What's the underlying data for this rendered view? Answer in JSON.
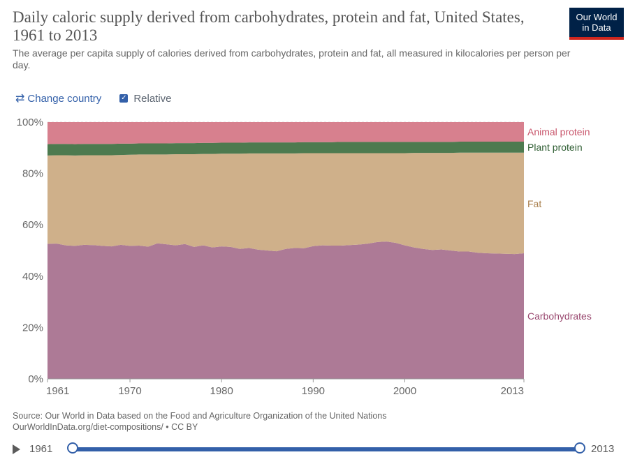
{
  "header": {
    "title": "Daily caloric supply derived from carbohydrates, protein and fat, United States, 1961 to 2013",
    "subtitle": "The average per capita supply of calories derived from carbohydrates, protein and fat, all measured in kilocalories per person per day.",
    "logo_line1": "Our World",
    "logo_line2": "in Data"
  },
  "controls": {
    "change_country_label": "Change country",
    "relative_label": "Relative",
    "relative_checked": true
  },
  "chart_data": {
    "type": "area",
    "stacked": true,
    "relative": true,
    "x": [
      1961,
      1962,
      1963,
      1964,
      1965,
      1966,
      1967,
      1968,
      1969,
      1970,
      1971,
      1972,
      1973,
      1974,
      1975,
      1976,
      1977,
      1978,
      1979,
      1980,
      1981,
      1982,
      1983,
      1984,
      1985,
      1986,
      1987,
      1988,
      1989,
      1990,
      1991,
      1992,
      1993,
      1994,
      1995,
      1996,
      1997,
      1998,
      1999,
      2000,
      2001,
      2002,
      2003,
      2004,
      2005,
      2006,
      2007,
      2008,
      2009,
      2010,
      2011,
      2012,
      2013
    ],
    "series": [
      {
        "name": "Carbohydrates",
        "color": "#ad7a96",
        "values": [
          52.6,
          52.7,
          52.0,
          51.8,
          52.2,
          52.1,
          51.8,
          51.6,
          52.2,
          51.8,
          51.9,
          51.5,
          52.8,
          52.4,
          52.0,
          52.5,
          51.4,
          52.0,
          51.2,
          51.6,
          51.4,
          50.6,
          51.0,
          50.3,
          50.0,
          49.7,
          50.6,
          51.0,
          50.9,
          51.7,
          52.0,
          51.9,
          51.9,
          52.1,
          52.3,
          52.7,
          53.3,
          53.5,
          53.0,
          52.0,
          51.2,
          50.6,
          50.2,
          50.4,
          50.0,
          49.6,
          49.6,
          49.1,
          48.9,
          48.8,
          48.7,
          48.6,
          48.9
        ]
      },
      {
        "name": "Fat",
        "color": "#cfb08a",
        "values": [
          34.4,
          34.4,
          35.1,
          35.2,
          34.9,
          35.0,
          35.3,
          35.5,
          35.0,
          35.5,
          35.5,
          35.9,
          34.6,
          35.0,
          35.5,
          35.0,
          36.1,
          35.6,
          36.4,
          36.1,
          36.3,
          37.1,
          36.8,
          37.5,
          37.8,
          38.1,
          37.2,
          36.8,
          37.0,
          36.2,
          35.9,
          36.0,
          36.0,
          35.8,
          35.6,
          35.2,
          34.6,
          34.4,
          34.9,
          35.9,
          36.8,
          37.4,
          37.8,
          37.6,
          38.0,
          38.5,
          38.5,
          39.0,
          39.2,
          39.3,
          39.4,
          39.5,
          39.2
        ]
      },
      {
        "name": "Plant protein",
        "color": "#4d7a4f",
        "values": [
          4.4,
          4.4,
          4.4,
          4.4,
          4.4,
          4.4,
          4.4,
          4.4,
          4.4,
          4.3,
          4.3,
          4.3,
          4.3,
          4.3,
          4.3,
          4.3,
          4.3,
          4.3,
          4.3,
          4.3,
          4.3,
          4.3,
          4.3,
          4.3,
          4.3,
          4.3,
          4.3,
          4.3,
          4.3,
          4.3,
          4.3,
          4.3,
          4.4,
          4.4,
          4.4,
          4.4,
          4.4,
          4.4,
          4.4,
          4.4,
          4.3,
          4.3,
          4.3,
          4.3,
          4.3,
          4.3,
          4.3,
          4.3,
          4.3,
          4.3,
          4.3,
          4.3,
          4.3
        ]
      },
      {
        "name": "Animal protein",
        "color": "#d7808e",
        "values": [
          8.6,
          8.5,
          8.5,
          8.6,
          8.5,
          8.5,
          8.5,
          8.5,
          8.4,
          8.4,
          8.3,
          8.3,
          8.3,
          8.3,
          8.2,
          8.2,
          8.2,
          8.1,
          8.1,
          8.0,
          8.0,
          8.0,
          7.9,
          7.9,
          7.9,
          7.9,
          7.9,
          7.9,
          7.8,
          7.8,
          7.8,
          7.8,
          7.7,
          7.7,
          7.7,
          7.7,
          7.7,
          7.7,
          7.7,
          7.7,
          7.7,
          7.7,
          7.7,
          7.7,
          7.7,
          7.6,
          7.6,
          7.6,
          7.6,
          7.6,
          7.6,
          7.6,
          7.6
        ]
      }
    ],
    "y_ticks": [
      0,
      20,
      40,
      60,
      80,
      100
    ],
    "y_tick_labels": [
      "0%",
      "20%",
      "40%",
      "60%",
      "80%",
      "100%"
    ],
    "x_ticks": [
      1961,
      1970,
      1980,
      1990,
      2000,
      2013
    ],
    "x_tick_labels": [
      "1961",
      "1970",
      "1980",
      "1990",
      "2000",
      "2013"
    ],
    "xlim": [
      1961,
      2013
    ],
    "ylim": [
      0,
      100
    ],
    "grid": "horizontal dashed",
    "legend": "right, inline labels"
  },
  "legend_labels": {
    "animal_protein": "Animal protein",
    "plant_protein": "Plant protein",
    "fat": "Fat",
    "carbohydrates": "Carbohydrates"
  },
  "legend_colors": {
    "animal_protein": "#c8556b",
    "plant_protein": "#2f5e33",
    "fat": "#a97f4c",
    "carbohydrates": "#99486f"
  },
  "footer": {
    "source_line1": "Source: Our World in Data based on the Food and Agriculture Organization of the United Nations",
    "source_line2": "OurWorldInData.org/diet-compositions/ • CC BY"
  },
  "timeline": {
    "start_label": "1961",
    "end_label": "2013"
  }
}
